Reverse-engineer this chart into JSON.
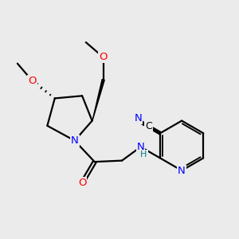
{
  "bg_color": "#ebebeb",
  "atom_colors": {
    "N": "#0000ff",
    "O": "#ff0000",
    "H": "#008080",
    "C": "#000000"
  },
  "bond_color": "#000000",
  "bond_width": 1.6,
  "font_size": 9.5
}
